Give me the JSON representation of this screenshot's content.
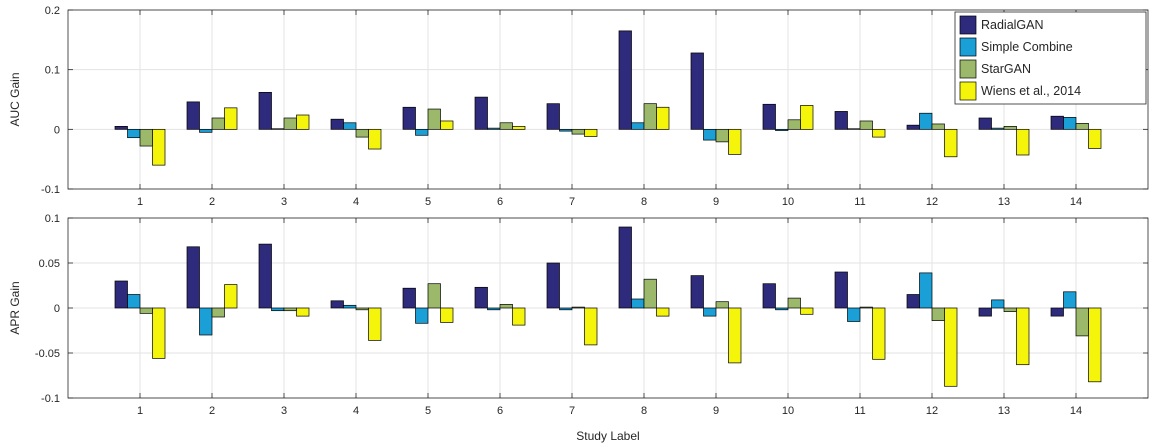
{
  "chart_data": [
    {
      "type": "bar",
      "ylabel": "AUC Gain",
      "xlabel": "",
      "ylim": [
        -0.1,
        0.2
      ],
      "yticks": [
        -0.1,
        0,
        0.1,
        0.2
      ],
      "ytick_labels": [
        "-0.1",
        "0",
        "0.1",
        "0.2"
      ],
      "grid": true,
      "legend_position": "top-right",
      "categories": [
        "1",
        "2",
        "3",
        "4",
        "5",
        "6",
        "7",
        "8",
        "9",
        "10",
        "11",
        "12",
        "13",
        "14"
      ],
      "series": [
        {
          "name": "RadialGAN",
          "color": "#2e2a7c",
          "values": [
            0.005,
            0.046,
            0.062,
            0.017,
            0.037,
            0.054,
            0.043,
            0.165,
            0.128,
            0.042,
            0.03,
            0.007,
            0.019,
            0.022
          ]
        },
        {
          "name": "Simple Combine",
          "color": "#1a9fd6",
          "values": [
            -0.014,
            -0.005,
            0.001,
            0.011,
            -0.01,
            0.002,
            -0.003,
            0.011,
            -0.018,
            -0.002,
            0.001,
            0.027,
            0.002,
            0.02
          ]
        },
        {
          "name": "StarGAN",
          "color": "#9cb86a",
          "values": [
            -0.028,
            0.019,
            0.019,
            -0.013,
            0.034,
            0.011,
            -0.008,
            0.043,
            -0.021,
            0.016,
            0.014,
            0.009,
            0.005,
            0.01
          ]
        },
        {
          "name": "Wiens et al., 2014",
          "color": "#f5f50c",
          "values": [
            -0.06,
            0.036,
            0.024,
            -0.033,
            0.014,
            0.005,
            -0.012,
            0.037,
            -0.042,
            0.04,
            -0.013,
            -0.046,
            -0.043,
            -0.032
          ]
        }
      ]
    },
    {
      "type": "bar",
      "ylabel": "APR Gain",
      "xlabel": "Study Label",
      "ylim": [
        -0.1,
        0.1
      ],
      "yticks": [
        -0.1,
        -0.05,
        0,
        0.05,
        0.1
      ],
      "ytick_labels": [
        "-0.1",
        "-0.05",
        "0",
        "0.05",
        "0.1"
      ],
      "grid": true,
      "categories": [
        "1",
        "2",
        "3",
        "4",
        "5",
        "6",
        "7",
        "8",
        "9",
        "10",
        "11",
        "12",
        "13",
        "14"
      ],
      "series": [
        {
          "name": "RadialGAN",
          "color": "#2e2a7c",
          "values": [
            0.03,
            0.068,
            0.071,
            0.008,
            0.022,
            0.023,
            0.05,
            0.09,
            0.036,
            0.027,
            0.04,
            0.015,
            -0.009,
            -0.009
          ]
        },
        {
          "name": "Simple Combine",
          "color": "#1a9fd6",
          "values": [
            0.015,
            -0.03,
            -0.003,
            0.003,
            -0.017,
            -0.002,
            -0.002,
            0.01,
            -0.009,
            -0.002,
            -0.015,
            0.039,
            0.009,
            0.018
          ]
        },
        {
          "name": "StarGAN",
          "color": "#9cb86a",
          "values": [
            -0.006,
            -0.01,
            -0.003,
            -0.002,
            0.027,
            0.004,
            0.001,
            0.032,
            0.007,
            0.011,
            0.001,
            -0.014,
            -0.004,
            -0.031
          ]
        },
        {
          "name": "Wiens et al., 2014",
          "color": "#f5f50c",
          "values": [
            -0.056,
            0.026,
            -0.009,
            -0.036,
            -0.016,
            -0.019,
            -0.041,
            -0.009,
            -0.061,
            -0.007,
            -0.057,
            -0.087,
            -0.063,
            -0.082
          ]
        }
      ]
    }
  ]
}
